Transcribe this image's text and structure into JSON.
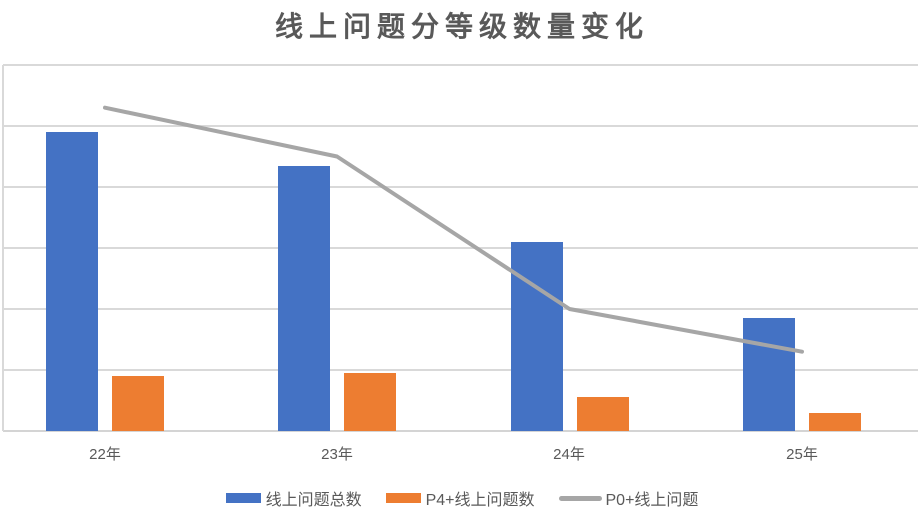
{
  "title": "线上问题分等级数量变化",
  "chart_data": {
    "type": "bar",
    "subtype": "clustered-bars-with-line-overlay",
    "title": "线上问题分等级数量变化",
    "categories": [
      "22年",
      "23年",
      "24年",
      "25年"
    ],
    "series": [
      {
        "name": "线上问题总数",
        "type": "bar",
        "color": "#4472C4",
        "values": [
          4.9,
          4.35,
          3.1,
          1.85
        ]
      },
      {
        "name": "P4+线上问题数",
        "type": "bar",
        "color": "#ED7D31",
        "values": [
          0.9,
          0.95,
          0.55,
          0.3
        ]
      },
      {
        "name": "P0+线上问题",
        "type": "line",
        "color": "#A6A6A6",
        "values": [
          5.3,
          4.5,
          2.0,
          1.3
        ]
      }
    ],
    "xlabel": "",
    "ylabel": "",
    "ylim": [
      0,
      6
    ],
    "yticks_visible": false,
    "gridlines": "horizontal",
    "gridline_color": "#D9D9D9",
    "legend_position": "bottom",
    "note": "y-axis has no labels; values estimated in gridline units (1 unit = one gridline interval)"
  },
  "legend": {
    "items": [
      {
        "label": "线上问题总数",
        "swatch": "bar",
        "color": "#4472C4"
      },
      {
        "label": "P4+线上问题数",
        "swatch": "bar",
        "color": "#ED7D31"
      },
      {
        "label": "P0+线上问题",
        "swatch": "line",
        "color": "#A6A6A6"
      }
    ]
  },
  "colors": {
    "background": "#FFFFFF",
    "bar_blue": "#4472C4",
    "bar_orange": "#ED7D31",
    "line_gray": "#A6A6A6",
    "gridline": "#D9D9D9",
    "title_text": "#595959",
    "axis_text": "#595959"
  }
}
